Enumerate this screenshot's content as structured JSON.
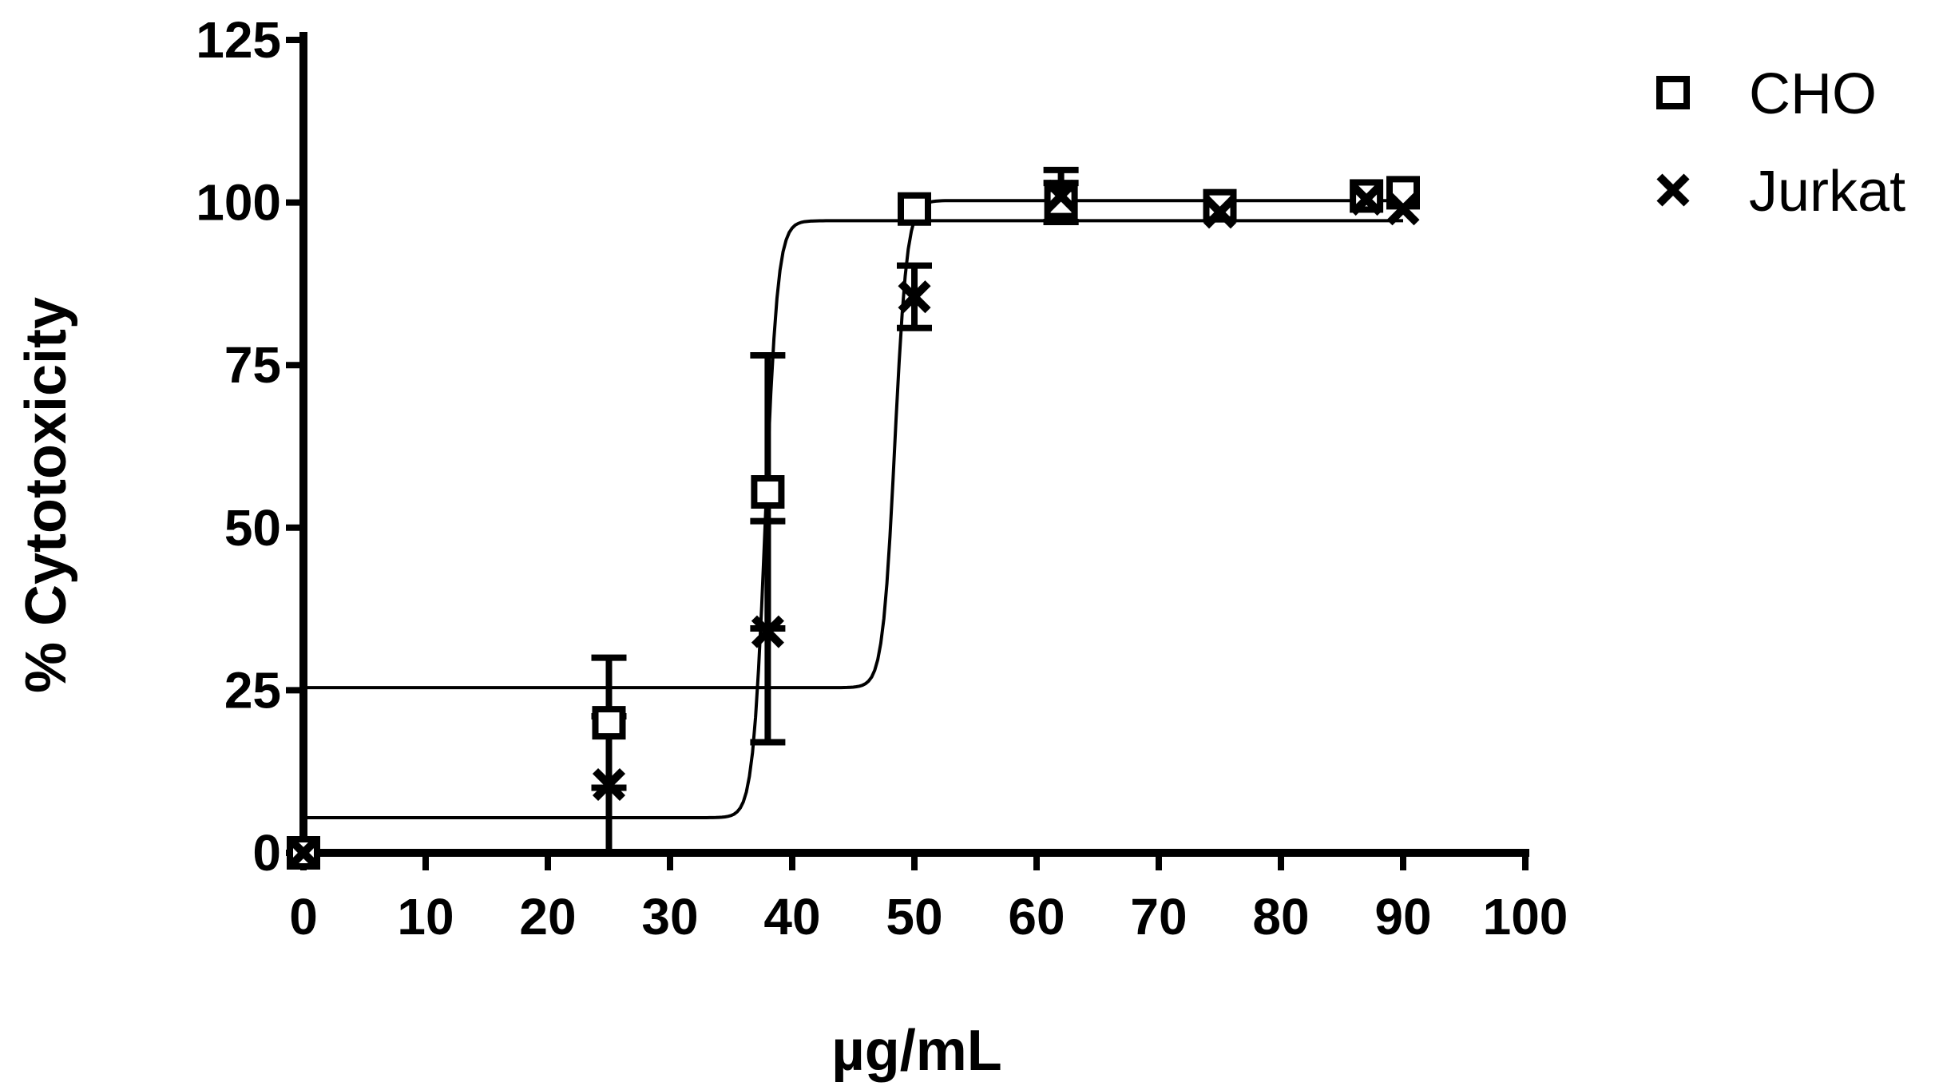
{
  "chart_data": {
    "type": "scatter",
    "title": "",
    "xlabel": "µg/mL",
    "ylabel": "% Cytotoxicity",
    "xlim": [
      0,
      100
    ],
    "ylim": [
      0,
      125
    ],
    "x_ticks": [
      0,
      10,
      20,
      30,
      40,
      50,
      60,
      70,
      80,
      90,
      100
    ],
    "y_ticks": [
      0,
      25,
      50,
      75,
      100,
      125
    ],
    "grid": false,
    "legend_position": "top-right",
    "series": [
      {
        "name": "CHO",
        "marker": "square",
        "x": [
          0,
          25,
          38,
          50,
          62,
          75,
          87,
          90
        ],
        "y": [
          0,
          20,
          55.5,
          99,
          100,
          99.5,
          101,
          101.5
        ],
        "err": [
          0,
          10,
          21,
          0,
          3,
          0,
          0,
          0
        ],
        "fit": {
          "bottom": 25.4,
          "top": 100.3,
          "ec50": 48.4,
          "slope": 0.5
        }
      },
      {
        "name": "Jurkat",
        "marker": "x",
        "x": [
          0,
          25,
          38,
          50,
          62,
          75,
          87,
          90
        ],
        "y": [
          0,
          10.5,
          34,
          85.5,
          101,
          98.5,
          100.5,
          99
        ],
        "err": [
          0,
          10.5,
          17,
          4.8,
          4,
          0,
          0,
          0
        ],
        "fit": {
          "bottom": 5.4,
          "top": 97.2,
          "ec50": 37.8,
          "slope": 0.5
        }
      }
    ]
  }
}
